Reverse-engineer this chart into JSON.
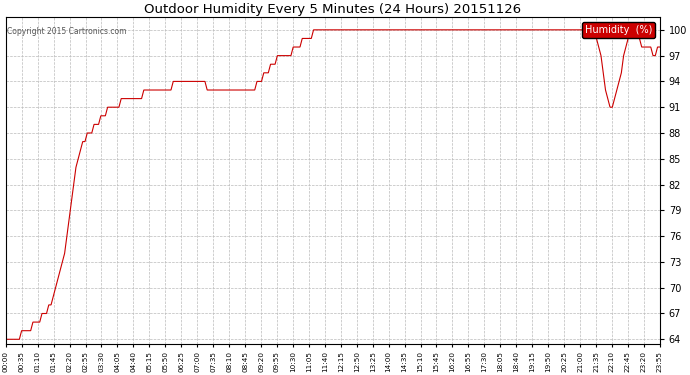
{
  "title": "Outdoor Humidity Every 5 Minutes (24 Hours) 20151126",
  "copyright": "Copyright 2015 Cartronics.com",
  "legend_label": "Humidity  (%)",
  "legend_bg": "#cc0000",
  "legend_fg": "#ffffff",
  "line_color": "#cc0000",
  "bg_color": "#ffffff",
  "grid_color": "#bbbbbb",
  "ylim": [
    63.5,
    101.5
  ],
  "yticks": [
    64.0,
    67.0,
    70.0,
    73.0,
    76.0,
    79.0,
    82.0,
    85.0,
    88.0,
    91.0,
    94.0,
    97.0,
    100.0
  ],
  "xtick_labels": [
    "00:00",
    "00:35",
    "01:10",
    "01:45",
    "02:20",
    "02:55",
    "03:30",
    "04:05",
    "04:40",
    "05:15",
    "05:50",
    "06:25",
    "07:00",
    "07:35",
    "08:10",
    "08:45",
    "09:20",
    "09:55",
    "10:30",
    "11:05",
    "11:40",
    "12:15",
    "12:50",
    "13:25",
    "14:00",
    "14:35",
    "15:10",
    "15:45",
    "16:20",
    "16:55",
    "17:30",
    "18:05",
    "18:40",
    "19:15",
    "19:50",
    "20:25",
    "21:00",
    "21:35",
    "22:10",
    "22:45",
    "23:20",
    "23:55"
  ],
  "humidity_data": [
    64,
    64,
    64,
    64,
    64,
    64,
    64,
    65,
    65,
    65,
    65,
    65,
    66,
    66,
    66,
    66,
    67,
    67,
    67,
    68,
    68,
    69,
    70,
    71,
    72,
    73,
    74,
    76,
    78,
    80,
    82,
    84,
    85,
    86,
    87,
    87,
    88,
    88,
    88,
    89,
    89,
    89,
    90,
    90,
    90,
    91,
    91,
    91,
    91,
    91,
    91,
    92,
    92,
    92,
    92,
    92,
    92,
    92,
    92,
    92,
    92,
    93,
    93,
    93,
    93,
    93,
    93,
    93,
    93,
    93,
    93,
    93,
    93,
    93,
    94,
    94,
    94,
    94,
    94,
    94,
    94,
    94,
    94,
    94,
    94,
    94,
    94,
    94,
    94,
    93,
    93,
    93,
    93,
    93,
    93,
    93,
    93,
    93,
    93,
    93,
    93,
    93,
    93,
    93,
    93,
    93,
    93,
    93,
    93,
    93,
    93,
    94,
    94,
    94,
    95,
    95,
    95,
    96,
    96,
    96,
    97,
    97,
    97,
    97,
    97,
    97,
    97,
    98,
    98,
    98,
    98,
    99,
    99,
    99,
    99,
    99,
    100,
    100,
    100,
    100,
    100,
    100,
    100,
    100,
    100,
    100,
    100,
    100,
    100,
    100,
    100,
    100,
    100,
    100,
    100,
    100,
    100,
    100,
    100,
    100,
    100,
    100,
    100,
    100,
    100,
    100,
    100,
    100,
    100,
    100,
    100,
    100,
    100,
    100,
    100,
    100,
    100,
    100,
    100,
    100,
    100,
    100,
    100,
    100,
    100,
    100,
    100,
    100,
    100,
    100,
    100,
    100,
    100,
    100,
    100,
    100,
    100,
    100,
    100,
    100,
    100,
    100,
    100,
    100,
    100,
    100,
    100,
    100,
    100,
    100,
    100,
    100,
    100,
    100,
    100,
    100,
    100,
    100,
    100,
    100,
    100,
    100,
    100,
    100,
    100,
    100,
    100,
    100,
    100,
    100,
    100,
    100,
    100,
    100,
    100,
    100,
    100,
    100,
    100,
    100,
    100,
    100,
    100,
    100,
    100,
    100,
    100,
    100,
    100,
    100,
    100,
    100,
    100,
    100,
    100,
    100,
    100,
    100,
    100,
    100,
    100,
    99,
    98,
    97,
    95,
    93,
    92,
    91,
    91,
    92,
    93,
    94,
    95,
    97,
    98,
    99,
    100,
    99,
    99,
    99,
    99,
    98,
    98,
    98,
    98,
    98,
    97,
    97,
    98,
    98
  ]
}
